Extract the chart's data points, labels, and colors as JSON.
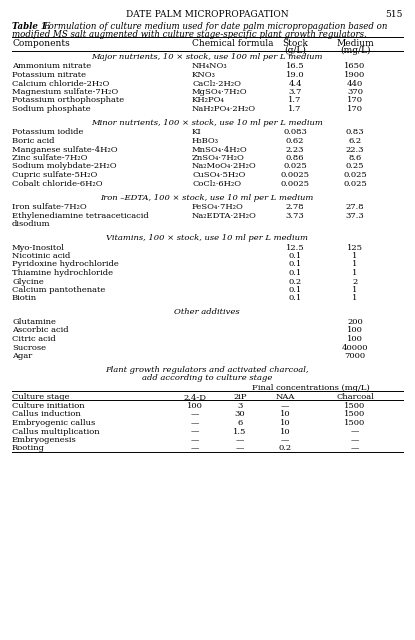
{
  "page_header": "Date Palm Micropropagation",
  "page_number": "515",
  "table_label": "Table 1.",
  "table_caption_part1": "Formulation of culture medium used for date palm micropropagation based on",
  "table_caption_part2": "modified MS salt augmented with culture stage-specific plant growth regulators.",
  "col_headers": [
    "Components",
    "Chemical formula",
    "Stock\n(g/L)",
    "Medium\n(mg/L)"
  ],
  "sections": [
    {
      "section_title": "Major nutrients, 10 × stock, use 100 ml per L medium",
      "rows": [
        [
          "Ammonium nitrate",
          "NH₄NO₃",
          "16.5",
          "1650"
        ],
        [
          "Potassium nitrate",
          "KNO₃",
          "19.0",
          "1900"
        ],
        [
          "Calcium chloride-2H₂O",
          "CaCl₂·2H₂O",
          "4.4",
          "440"
        ],
        [
          "Magnesium sulfate-7H₂O",
          "MgSO₄·7H₂O",
          "3.7",
          "370"
        ],
        [
          "Potassium orthophosphate",
          "KH₂PO₄",
          "1.7",
          "170"
        ],
        [
          "Sodium phosphate",
          "NaH₂PO₄·2H₂O",
          "1.7",
          "170"
        ]
      ]
    },
    {
      "section_title": "Minor nutrients, 100 × stock, use 10 ml per L medium",
      "rows": [
        [
          "Potassium iodide",
          "KI",
          "0.083",
          "0.83"
        ],
        [
          "Boric acid",
          "H₃BO₃",
          "0.62",
          "6.2"
        ],
        [
          "Manganese sulfate-4H₂O",
          "MnSO₄·4H₂O",
          "2.23",
          "22.3"
        ],
        [
          "Zinc sulfate-7H₂O",
          "ZnSO₄·7H₂O",
          "0.86",
          "8.6"
        ],
        [
          "Sodium molybdate-2H₂O",
          "Na₂MoO₄·2H₂O",
          "0.025",
          "0.25"
        ],
        [
          "Cupric sulfate-5H₂O",
          "CuSO₄·5H₂O",
          "0.0025",
          "0.025"
        ],
        [
          "Cobalt chloride-6H₂O",
          "CoCl₂·6H₂O",
          "0.0025",
          "0.025"
        ]
      ]
    },
    {
      "section_title": "Iron –EDTA, 100 × stock, use 10 ml per L medium",
      "rows": [
        [
          "Iron sulfate-7H₂O",
          "FeSO₄·7H₂O",
          "2.78",
          "27.8"
        ],
        [
          "Ethylenediamine tetraaceticacid",
          "Na₂EDTA·2H₂O",
          "3.73",
          "37.3"
        ],
        [
          "disodium",
          "",
          "",
          ""
        ]
      ]
    },
    {
      "section_title": "Vitamins, 100 × stock, use 10 ml per L medium",
      "rows": [
        [
          "Myo-Inositol",
          "",
          "12.5",
          "125"
        ],
        [
          "Nicotinic acid",
          "",
          "0.1",
          "1"
        ],
        [
          "Pyridoxine hydrochloride",
          "",
          "0.1",
          "1"
        ],
        [
          "Thiamine hydrochloride",
          "",
          "0.1",
          "1"
        ],
        [
          "Glycine",
          "",
          "0.2",
          "2"
        ],
        [
          "Calcium pantothenate",
          "",
          "0.1",
          "1"
        ],
        [
          "Biotin",
          "",
          "0.1",
          "1"
        ]
      ]
    },
    {
      "section_title": "Other additives",
      "rows": [
        [
          "Glutamine",
          "",
          "",
          "200"
        ],
        [
          "Ascorbic acid",
          "",
          "",
          "100"
        ],
        [
          "Citric acid",
          "",
          "",
          "100"
        ],
        [
          "Sucrose",
          "",
          "",
          "40000"
        ],
        [
          "Agar",
          "",
          "",
          "7000"
        ]
      ]
    }
  ],
  "pgr_title_line1": "Plant growth regulators and activated charcoal,",
  "pgr_title_line2": "add according to culture stage",
  "pgr_col_headers": [
    "Culture stage",
    "2,4-D",
    "2iP",
    "NAA",
    "Charcoal"
  ],
  "pgr_rows": [
    [
      "Culture initiation",
      "100",
      "3",
      "—",
      "1500"
    ],
    [
      "Callus induction",
      "—",
      "30",
      "10",
      "1500"
    ],
    [
      "Embryogenic callus",
      "—",
      "6",
      "10",
      "1500"
    ],
    [
      "Callus multiplication",
      "—",
      "1.5",
      "10",
      "—"
    ],
    [
      "Embryogenesis",
      "—",
      "—",
      "—",
      "—"
    ],
    [
      "Rooting",
      "—",
      "—",
      "0.2",
      "—"
    ]
  ],
  "background": "#ffffff",
  "text_color": "#000000"
}
